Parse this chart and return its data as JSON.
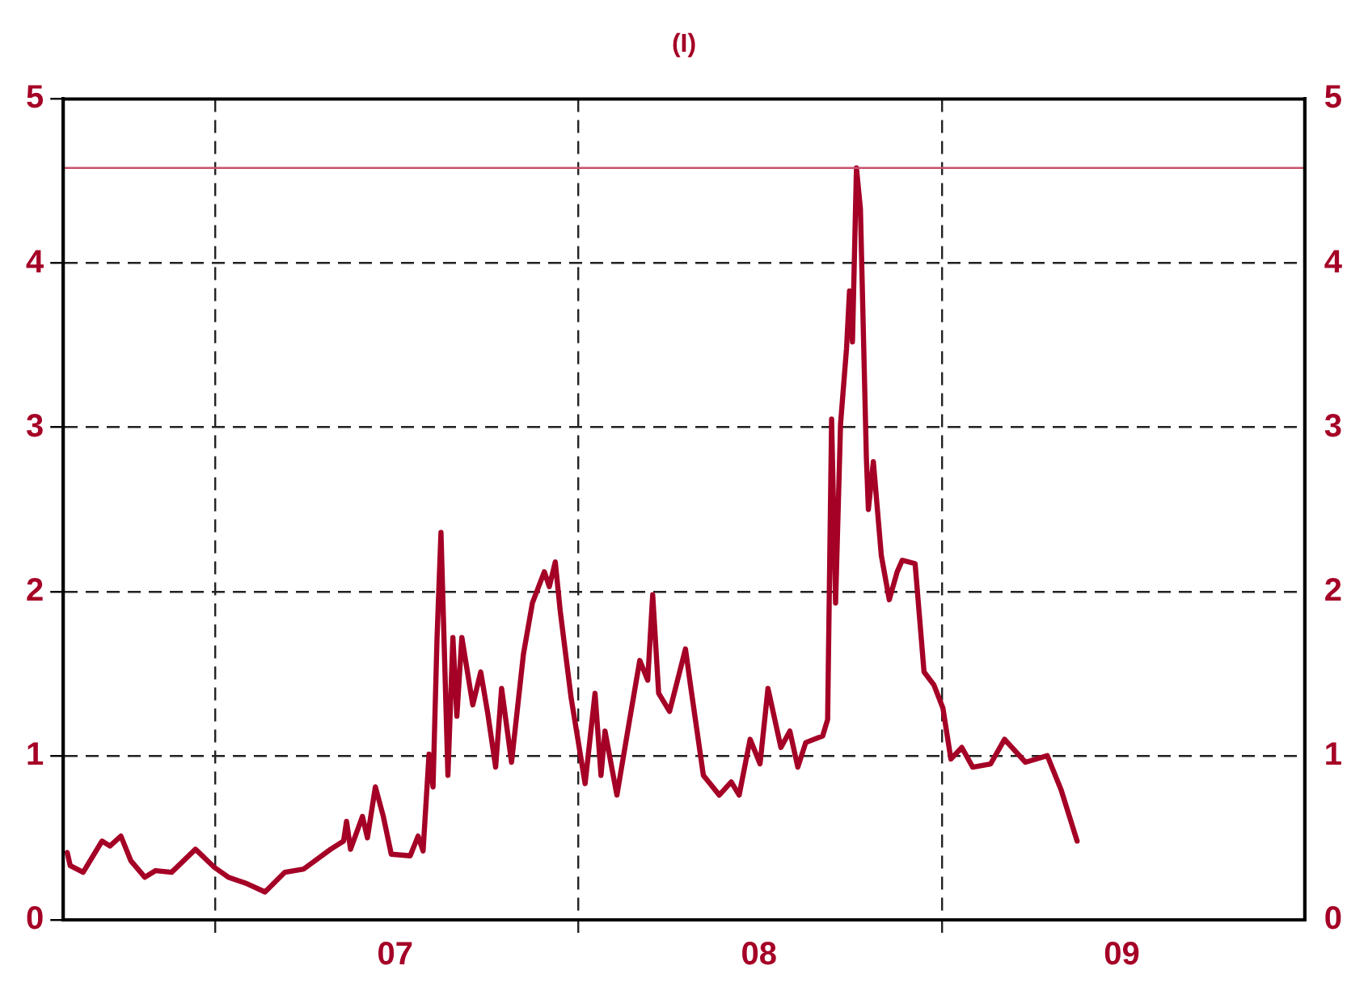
{
  "chart_data": {
    "type": "line",
    "title": "(I)",
    "x": [
      "2006-08-05",
      "2006-08-08",
      "2006-08-21",
      "2006-09-09",
      "2006-09-17",
      "2006-09-28",
      "2006-10-08",
      "2006-10-22",
      "2006-11-02",
      "2006-11-18",
      "2006-12-12",
      "2006-12-31",
      "2007-01-14",
      "2007-02-02",
      "2007-02-20",
      "2007-03-12",
      "2007-03-31",
      "2007-04-27",
      "2007-05-10",
      "2007-05-13",
      "2007-05-17",
      "2007-05-29",
      "2007-06-03",
      "2007-06-11",
      "2007-06-19",
      "2007-06-27",
      "2007-07-16",
      "2007-07-24",
      "2007-07-29",
      "2007-08-04",
      "2007-08-08",
      "2007-08-12",
      "2007-08-16",
      "2007-08-23",
      "2007-08-28",
      "2007-09-01",
      "2007-09-06",
      "2007-09-17",
      "2007-09-25",
      "2007-10-02",
      "2007-10-10",
      "2007-10-16",
      "2007-10-26",
      "2007-11-07",
      "2007-11-16",
      "2007-11-28",
      "2007-12-03",
      "2007-12-09",
      "2007-12-14",
      "2007-12-25",
      "2008-01-08",
      "2008-01-18",
      "2008-01-24",
      "2008-01-28",
      "2008-02-09",
      "2008-02-21",
      "2008-03-03",
      "2008-03-11",
      "2008-03-16",
      "2008-03-22",
      "2008-04-02",
      "2008-04-18",
      "2008-04-23",
      "2008-05-06",
      "2008-05-22",
      "2008-06-03",
      "2008-06-11",
      "2008-06-22",
      "2008-07-02",
      "2008-07-10",
      "2008-07-23",
      "2008-08-01",
      "2008-08-09",
      "2008-08-17",
      "2008-09-03",
      "2008-09-08",
      "2008-09-12",
      "2008-09-16",
      "2008-09-21",
      "2008-09-27",
      "2008-09-30",
      "2008-10-03",
      "2008-10-07",
      "2008-10-11",
      "2008-10-17",
      "2008-10-19",
      "2008-10-24",
      "2008-11-01",
      "2008-11-09",
      "2008-11-17",
      "2008-11-22",
      "2008-12-05",
      "2008-12-14",
      "2008-12-24",
      "2009-01-02",
      "2009-01-10",
      "2009-01-21",
      "2009-02-01",
      "2009-02-19",
      "2009-03-05",
      "2009-03-26",
      "2009-04-17",
      "2009-05-01",
      "2009-05-17"
    ],
    "series": [
      {
        "color": "#a50026",
        "values": [
          0.41,
          0.33,
          0.29,
          0.48,
          0.45,
          0.51,
          0.36,
          0.26,
          0.3,
          0.29,
          0.43,
          0.32,
          0.26,
          0.22,
          0.17,
          0.29,
          0.31,
          0.43,
          0.48,
          0.6,
          0.43,
          0.63,
          0.5,
          0.81,
          0.63,
          0.4,
          0.39,
          0.51,
          0.42,
          1.01,
          0.81,
          1.71,
          2.36,
          0.88,
          1.72,
          1.24,
          1.72,
          1.31,
          1.51,
          1.26,
          0.93,
          1.41,
          0.96,
          1.62,
          1.93,
          2.12,
          2.03,
          2.18,
          1.88,
          1.35,
          0.83,
          1.38,
          0.88,
          1.15,
          0.76,
          1.19,
          1.58,
          1.46,
          1.98,
          1.38,
          1.27,
          1.65,
          1.43,
          0.88,
          0.76,
          0.84,
          0.76,
          1.1,
          0.95,
          1.41,
          1.05,
          1.15,
          0.93,
          1.08,
          1.12,
          1.22,
          3.05,
          1.93,
          3.02,
          3.48,
          3.83,
          3.52,
          4.58,
          4.33,
          2.81,
          2.5,
          2.79,
          2.22,
          1.95,
          2.12,
          2.19,
          2.17,
          1.51,
          1.43,
          1.29,
          0.98,
          1.05,
          0.93,
          0.95,
          1.1,
          0.96,
          1.0,
          0.79,
          0.48
        ]
      }
    ],
    "xlim": [
      "2006-08-01",
      "2010-01-01"
    ],
    "xticks": [
      {
        "value": "2007-01-01",
        "label": null
      },
      {
        "value": "2007-07-01",
        "label": "07"
      },
      {
        "value": "2008-01-01",
        "label": null
      },
      {
        "value": "2008-07-01",
        "label": "08"
      },
      {
        "value": "2009-01-01",
        "label": null
      },
      {
        "value": "2009-07-01",
        "label": "09"
      }
    ],
    "ylim": [
      0,
      5
    ],
    "yticks": [
      0,
      1,
      2,
      3,
      4,
      5
    ],
    "y2lim": [
      0,
      5
    ],
    "y2ticks": [
      0,
      1,
      2,
      3,
      4,
      5
    ],
    "ref_lines": [
      {
        "axis": "y",
        "value": 4.58,
        "color": "#c8506e"
      }
    ],
    "grid": true,
    "legend": false,
    "marker": "none",
    "line_style": "solid"
  }
}
